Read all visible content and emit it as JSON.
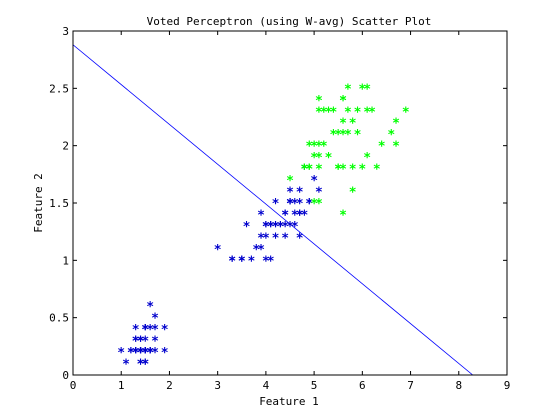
{
  "chart_data": {
    "type": "scatter",
    "title": "Voted Perceptron (using W-avg) Scatter Plot",
    "xlabel": "Feature 1",
    "ylabel": "Feature 2",
    "xlim": [
      0,
      9
    ],
    "ylim": [
      0,
      3
    ],
    "x_ticks": [
      0,
      1,
      2,
      3,
      4,
      5,
      6,
      7,
      8,
      9
    ],
    "y_ticks": [
      0,
      0.5,
      1,
      1.5,
      2,
      2.5,
      3
    ],
    "x_tick_labels": [
      "0",
      "1",
      "2",
      "3",
      "4",
      "5",
      "6",
      "7",
      "8",
      "9"
    ],
    "y_tick_labels": [
      "0",
      "0.5",
      "1",
      "1.5",
      "2",
      "2.5",
      "3"
    ],
    "grid": false,
    "legend": "none",
    "marker": "*",
    "series": [
      {
        "color": "#0000cc",
        "points": [
          [
            1.4,
            0.2
          ],
          [
            1.4,
            0.2
          ],
          [
            1.3,
            0.2
          ],
          [
            1.5,
            0.2
          ],
          [
            1.4,
            0.2
          ],
          [
            1.7,
            0.4
          ],
          [
            1.4,
            0.3
          ],
          [
            1.5,
            0.2
          ],
          [
            1.4,
            0.2
          ],
          [
            1.5,
            0.1
          ],
          [
            1.5,
            0.2
          ],
          [
            1.6,
            0.2
          ],
          [
            1.4,
            0.1
          ],
          [
            1.1,
            0.1
          ],
          [
            1.2,
            0.2
          ],
          [
            1.5,
            0.4
          ],
          [
            1.3,
            0.4
          ],
          [
            1.4,
            0.3
          ],
          [
            1.7,
            0.3
          ],
          [
            1.5,
            0.3
          ],
          [
            1.7,
            0.2
          ],
          [
            1.5,
            0.4
          ],
          [
            1.0,
            0.2
          ],
          [
            1.7,
            0.5
          ],
          [
            1.9,
            0.2
          ],
          [
            1.6,
            0.2
          ],
          [
            1.6,
            0.4
          ],
          [
            1.5,
            0.2
          ],
          [
            1.4,
            0.2
          ],
          [
            1.6,
            0.2
          ],
          [
            1.6,
            0.2
          ],
          [
            1.5,
            0.4
          ],
          [
            1.5,
            0.1
          ],
          [
            1.4,
            0.2
          ],
          [
            1.5,
            0.2
          ],
          [
            1.2,
            0.2
          ],
          [
            1.3,
            0.2
          ],
          [
            1.4,
            0.1
          ],
          [
            1.3,
            0.2
          ],
          [
            1.5,
            0.2
          ],
          [
            1.3,
            0.3
          ],
          [
            1.3,
            0.3
          ],
          [
            1.3,
            0.2
          ],
          [
            1.6,
            0.6
          ],
          [
            1.9,
            0.4
          ],
          [
            1.4,
            0.3
          ],
          [
            1.6,
            0.2
          ],
          [
            1.4,
            0.2
          ],
          [
            1.5,
            0.2
          ],
          [
            1.4,
            0.2
          ],
          [
            4.7,
            1.4
          ],
          [
            4.5,
            1.5
          ],
          [
            4.9,
            1.5
          ],
          [
            4.0,
            1.3
          ],
          [
            4.6,
            1.5
          ],
          [
            4.5,
            1.3
          ],
          [
            4.7,
            1.6
          ],
          [
            3.3,
            1.0
          ],
          [
            4.6,
            1.3
          ],
          [
            3.9,
            1.4
          ],
          [
            3.5,
            1.0
          ],
          [
            4.2,
            1.5
          ],
          [
            4.0,
            1.0
          ],
          [
            4.7,
            1.4
          ],
          [
            3.6,
            1.3
          ],
          [
            4.4,
            1.4
          ],
          [
            4.5,
            1.5
          ],
          [
            4.1,
            1.0
          ],
          [
            4.5,
            1.5
          ],
          [
            3.9,
            1.1
          ],
          [
            4.8,
            1.8
          ],
          [
            4.0,
            1.3
          ],
          [
            4.9,
            1.5
          ],
          [
            4.7,
            1.2
          ],
          [
            4.3,
            1.3
          ],
          [
            4.4,
            1.4
          ],
          [
            4.8,
            1.4
          ],
          [
            5.0,
            1.7
          ],
          [
            4.5,
            1.5
          ],
          [
            3.5,
            1.0
          ],
          [
            3.8,
            1.1
          ],
          [
            3.7,
            1.0
          ],
          [
            3.9,
            1.2
          ],
          [
            5.1,
            1.6
          ],
          [
            4.5,
            1.5
          ],
          [
            4.5,
            1.6
          ],
          [
            4.7,
            1.5
          ],
          [
            4.4,
            1.3
          ],
          [
            4.1,
            1.3
          ],
          [
            4.0,
            1.3
          ],
          [
            4.4,
            1.2
          ],
          [
            4.6,
            1.4
          ],
          [
            4.0,
            1.2
          ],
          [
            3.3,
            1.0
          ],
          [
            4.2,
            1.3
          ],
          [
            4.2,
            1.2
          ],
          [
            4.2,
            1.3
          ],
          [
            4.3,
            1.3
          ],
          [
            3.0,
            1.1
          ],
          [
            4.1,
            1.3
          ]
        ]
      },
      {
        "color": "#00ff00",
        "points": [
          [
            6.0,
            2.5
          ],
          [
            5.1,
            1.9
          ],
          [
            5.9,
            2.1
          ],
          [
            5.6,
            1.8
          ],
          [
            5.8,
            2.2
          ],
          [
            6.6,
            2.1
          ],
          [
            4.5,
            1.7
          ],
          [
            6.3,
            1.8
          ],
          [
            5.8,
            1.8
          ],
          [
            6.1,
            2.5
          ],
          [
            5.1,
            2.0
          ],
          [
            5.3,
            1.9
          ],
          [
            5.5,
            2.1
          ],
          [
            5.0,
            2.0
          ],
          [
            5.1,
            2.4
          ],
          [
            5.3,
            2.3
          ],
          [
            5.5,
            1.8
          ],
          [
            6.7,
            2.2
          ],
          [
            6.9,
            2.3
          ],
          [
            5.0,
            1.5
          ],
          [
            5.7,
            2.3
          ],
          [
            4.9,
            2.0
          ],
          [
            6.7,
            2.0
          ],
          [
            4.9,
            1.8
          ],
          [
            5.7,
            2.1
          ],
          [
            6.0,
            1.8
          ],
          [
            4.8,
            1.8
          ],
          [
            4.9,
            1.8
          ],
          [
            5.6,
            2.1
          ],
          [
            5.8,
            1.6
          ],
          [
            6.1,
            1.9
          ],
          [
            6.4,
            2.0
          ],
          [
            5.6,
            2.2
          ],
          [
            5.1,
            1.5
          ],
          [
            5.6,
            1.4
          ],
          [
            6.1,
            2.3
          ],
          [
            5.6,
            2.4
          ],
          [
            5.5,
            1.8
          ],
          [
            4.8,
            1.8
          ],
          [
            5.4,
            2.1
          ],
          [
            5.6,
            2.4
          ],
          [
            5.1,
            2.3
          ],
          [
            5.9,
            2.3
          ],
          [
            5.7,
            2.5
          ],
          [
            5.2,
            2.3
          ],
          [
            5.0,
            1.9
          ],
          [
            5.2,
            2.0
          ],
          [
            5.4,
            2.3
          ],
          [
            5.1,
            1.8
          ],
          [
            6.2,
            2.3
          ]
        ]
      }
    ],
    "decision_line": {
      "color": "#0000ff",
      "points": [
        [
          0,
          2.88
        ],
        [
          8.29,
          0
        ]
      ]
    }
  }
}
